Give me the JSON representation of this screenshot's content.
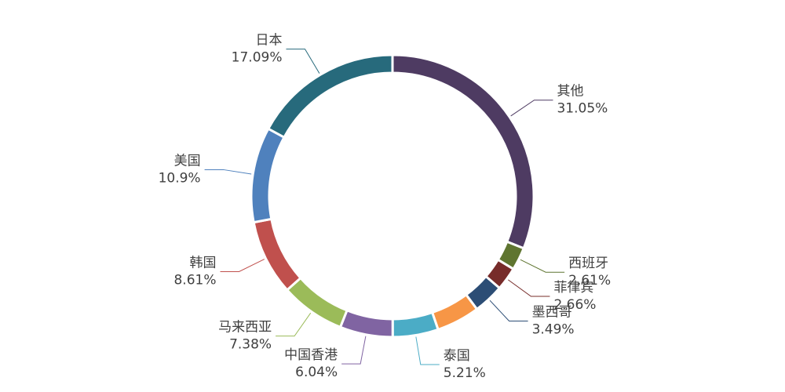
{
  "chart_data": {
    "type": "donut",
    "categories": [
      "其他",
      "西班牙",
      "菲律宾",
      "墨西哥",
      null,
      "泰国",
      "中国香港",
      "马来西亚",
      "韩国",
      "美国",
      "日本"
    ],
    "values": [
      31.05,
      2.61,
      2.66,
      3.49,
      4.96,
      5.21,
      6.04,
      7.38,
      8.61,
      10.9,
      17.09
    ],
    "value_labels": [
      "31.05%",
      "2.61%",
      "2.66%",
      "3.49%",
      null,
      "5.21%",
      "6.04%",
      "7.38%",
      "8.61%",
      "10.9%",
      "17.09%"
    ],
    "colors": [
      "#4e3b62",
      "#5f7530",
      "#772c2a",
      "#2c4d75",
      "#f79646",
      "#4bacc6",
      "#8064a2",
      "#9bbb59",
      "#c0504d",
      "#4f81bd",
      "#276a7c"
    ]
  }
}
